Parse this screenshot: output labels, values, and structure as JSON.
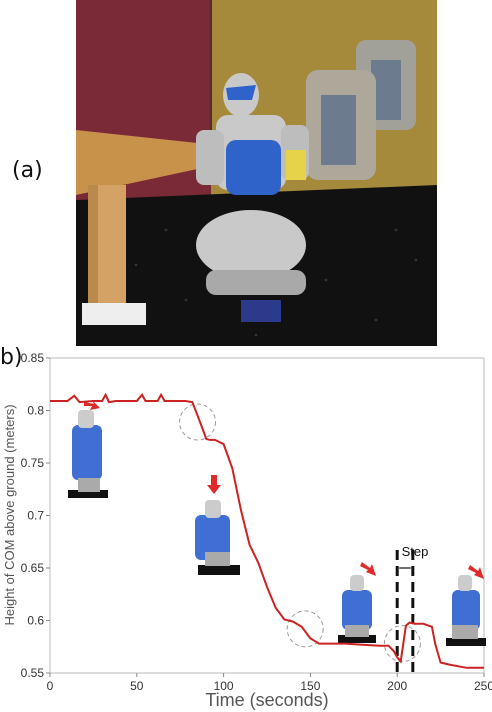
{
  "panels": {
    "a": "(a)",
    "b": "b)"
  },
  "scene": {
    "colors": {
      "wall_left": "#7a2a36",
      "wall_right": "#a58a3c",
      "floor": "#111111",
      "table": "#c8924a",
      "robot_blue": "#2f63c9",
      "robot_gray": "#c9c9c9",
      "robot_yellow": "#e7d34a"
    }
  },
  "chart_data": {
    "type": "line",
    "xlabel": "Time (seconds)",
    "ylabel": "Height of COM above ground (meters)",
    "xlim": [
      0,
      250
    ],
    "ylim": [
      0.55,
      0.85
    ],
    "xticks": [
      0,
      50,
      100,
      150,
      200,
      250
    ],
    "yticks": [
      0.55,
      0.6,
      0.65,
      0.7,
      0.75,
      0.8,
      0.85
    ],
    "x_tick_labels": [
      "0",
      "50",
      "100",
      "150",
      "200",
      "250"
    ],
    "y_tick_labels": [
      "0.55",
      "0.6",
      "0.65",
      "0.7",
      "0.75",
      "0.8",
      "0.85"
    ],
    "line_color": "#cc2222",
    "series": [
      {
        "x": [
          0,
          10,
          14,
          17,
          25,
          30,
          32,
          34,
          38,
          45,
          50,
          53,
          55,
          58,
          62,
          64,
          66,
          70,
          78,
          82,
          85,
          88,
          90,
          92,
          95,
          100,
          105,
          110,
          115,
          120,
          125,
          130,
          135,
          140,
          145,
          150,
          155,
          160,
          170,
          180,
          190,
          195,
          198,
          200,
          202,
          205,
          207,
          210,
          215,
          220,
          222,
          225,
          230,
          240,
          250
        ],
        "y": [
          0.809,
          0.809,
          0.814,
          0.808,
          0.809,
          0.809,
          0.815,
          0.808,
          0.809,
          0.809,
          0.809,
          0.815,
          0.809,
          0.809,
          0.809,
          0.815,
          0.809,
          0.809,
          0.809,
          0.808,
          0.795,
          0.782,
          0.773,
          0.772,
          0.772,
          0.768,
          0.745,
          0.705,
          0.672,
          0.655,
          0.632,
          0.612,
          0.601,
          0.599,
          0.594,
          0.583,
          0.578,
          0.578,
          0.578,
          0.577,
          0.576,
          0.576,
          0.571,
          0.565,
          0.561,
          0.595,
          0.598,
          0.597,
          0.597,
          0.594,
          0.577,
          0.56,
          0.558,
          0.555,
          0.555
        ]
      }
    ],
    "annotations": {
      "step_label": "Step",
      "step_range": [
        200,
        209
      ],
      "circles": [
        {
          "x": 85,
          "y": 0.789
        },
        {
          "x": 147,
          "y": 0.592
        },
        {
          "x": 203,
          "y": 0.578
        }
      ]
    }
  }
}
